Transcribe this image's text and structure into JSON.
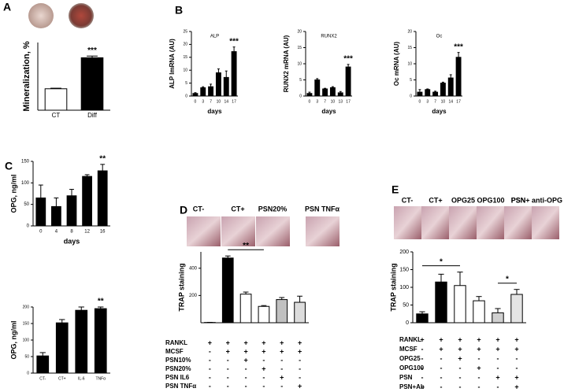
{
  "chart_data": [
    {
      "type": "bar",
      "panel": "A",
      "ylabel": "Mineralization, %",
      "categories": [
        "CT",
        "Diff"
      ],
      "values": [
        38,
        93
      ],
      "errors": [
        1,
        3
      ],
      "colors": [
        "#ffffff",
        "#000000"
      ],
      "ylim": [
        0,
        120
      ],
      "significance": [
        null,
        "***"
      ]
    },
    {
      "type": "bar",
      "panel": "B",
      "title": "ALP",
      "ylabel": "ALP lmRNA (AU)",
      "xlabel": "days",
      "categories": [
        "0",
        "3",
        "7",
        "10",
        "14",
        "17"
      ],
      "values": [
        1,
        3.2,
        3.6,
        9,
        7.2,
        17.2
      ],
      "errors": [
        0.3,
        0.4,
        1,
        1.5,
        2.5,
        1.8
      ],
      "colors": [
        "#000000",
        "#000000",
        "#000000",
        "#000000",
        "#000000",
        "#000000"
      ],
      "ylim": [
        0,
        25
      ],
      "yticks": [
        0,
        5,
        10,
        15,
        20,
        25
      ],
      "significance": [
        null,
        null,
        null,
        null,
        null,
        "***"
      ]
    },
    {
      "type": "bar",
      "title": "RUNX2",
      "ylabel": "RUNX2 mRNA (AU)",
      "xlabel": "days",
      "categories": [
        "0",
        "3",
        "7",
        "10",
        "13",
        "17"
      ],
      "values": [
        0.8,
        5,
        2.2,
        2.6,
        1,
        9
      ],
      "errors": [
        0.4,
        0.4,
        0.2,
        0.3,
        0.4,
        0.8
      ],
      "colors": [
        "#000000",
        "#000000",
        "#000000",
        "#000000",
        "#000000",
        "#000000"
      ],
      "ylim": [
        0,
        20
      ],
      "yticks": [
        0,
        5,
        10,
        15,
        20
      ],
      "significance": [
        null,
        null,
        null,
        null,
        null,
        "***"
      ]
    },
    {
      "type": "bar",
      "title": "Oc",
      "ylabel": "Oc mRNA (AU)",
      "xlabel": "days",
      "categories": [
        "0",
        "3",
        "7",
        "10",
        "14",
        "17"
      ],
      "values": [
        1.2,
        2,
        1.2,
        4,
        5.6,
        12
      ],
      "errors": [
        0.8,
        0.2,
        0.3,
        0.3,
        1,
        1.5
      ],
      "colors": [
        "#000000",
        "#000000",
        "#000000",
        "#000000",
        "#000000",
        "#000000"
      ],
      "ylim": [
        0,
        20
      ],
      "yticks": [
        0,
        5,
        10,
        15,
        20
      ],
      "significance": [
        null,
        null,
        null,
        null,
        null,
        "***"
      ]
    },
    {
      "type": "bar",
      "panel": "C",
      "ylabel": "OPG, ng/ml",
      "xlabel": "days",
      "categories": [
        "0",
        "4",
        "8",
        "12",
        "16"
      ],
      "values": [
        65,
        45,
        70,
        115,
        128
      ],
      "errors": [
        30,
        20,
        15,
        4,
        15
      ],
      "colors": [
        "#000000",
        "#000000",
        "#000000",
        "#000000",
        "#000000"
      ],
      "ylim": [
        0,
        150
      ],
      "yticks": [
        0,
        50,
        100,
        150
      ],
      "significance": [
        null,
        null,
        null,
        null,
        "**"
      ]
    },
    {
      "type": "bar",
      "ylabel": "OPG, ng/ml",
      "categories": [
        "CT-",
        "CT+",
        "IL-6",
        "TNFα"
      ],
      "values": [
        52,
        152,
        190,
        195
      ],
      "errors": [
        10,
        10,
        10,
        5
      ],
      "colors": [
        "#000000",
        "#000000",
        "#000000",
        "#000000"
      ],
      "ylim": [
        0,
        200
      ],
      "yticks": [
        0,
        50,
        100,
        150,
        200
      ],
      "significance": [
        null,
        null,
        null,
        "**"
      ]
    },
    {
      "type": "bar",
      "panel": "D",
      "ylabel": "TRAP staining",
      "image_labels": [
        "CT-",
        "CT+",
        "PSN20%",
        "PSN TNFα"
      ],
      "values": [
        2,
        475,
        210,
        120,
        170,
        150
      ],
      "errors": [
        1,
        15,
        15,
        6,
        15,
        45
      ],
      "colors": [
        "#ffffff",
        "#000000",
        "#ffffff",
        "#ffffff",
        "#c0c0c0",
        "#dcdcdc"
      ],
      "ylim": [
        0,
        520
      ],
      "yticks": [
        200,
        400
      ],
      "significance": [
        null,
        null,
        null,
        "**",
        null,
        null
      ],
      "table": {
        "rows": [
          {
            "label": "RANKL",
            "cells": [
              "+",
              "+",
              "+",
              "+",
              "+",
              "+"
            ]
          },
          {
            "label": "MCSF",
            "cells": [
              "-",
              "+",
              "+",
              "+",
              "+",
              "+"
            ]
          },
          {
            "label": "PSN10%",
            "cells": [
              "-",
              "-",
              "+",
              "-",
              "-",
              "-"
            ]
          },
          {
            "label": "PSN20%",
            "cells": [
              "-",
              "-",
              "-",
              "+",
              "-",
              "-"
            ]
          },
          {
            "label": "PSN IL6",
            "cells": [
              "-",
              "-",
              "-",
              "-",
              "+",
              "-"
            ]
          },
          {
            "label": "PSN TNFα",
            "cells": [
              "-",
              "-",
              "-",
              "-",
              "-",
              "+"
            ]
          }
        ]
      }
    },
    {
      "type": "bar",
      "panel": "E",
      "ylabel": "TRAP staining",
      "image_labels": [
        "CT-",
        "CT+",
        "OPG25",
        "OPG100",
        "PSN",
        "PSN+ anti-OPG"
      ],
      "values": [
        25,
        115,
        105,
        62,
        28,
        80
      ],
      "errors": [
        6,
        22,
        38,
        12,
        12,
        14
      ],
      "colors": [
        "#000000",
        "#000000",
        "#ffffff",
        "#ffffff",
        "#d0d0d0",
        "#e4e4e4"
      ],
      "ylim": [
        0,
        200
      ],
      "yticks": [
        0,
        50,
        100,
        150,
        200
      ],
      "significance": [
        null,
        null,
        "*",
        null,
        null,
        "*"
      ],
      "table": {
        "rows": [
          {
            "label": "RANKL",
            "cells": [
              "+",
              "+",
              "+",
              "+",
              "+",
              "+"
            ]
          },
          {
            "label": "MCSF",
            "cells": [
              "-",
              "+",
              "+",
              "+",
              "+",
              "+"
            ]
          },
          {
            "label": "OPG25",
            "cells": [
              "-",
              "-",
              "+",
              "-",
              "-",
              "-"
            ]
          },
          {
            "label": "OPG100",
            "cells": [
              "-",
              "-",
              "-",
              "+",
              "-",
              "-"
            ]
          },
          {
            "label": "PSN",
            "cells": [
              "-",
              "-",
              "-",
              "-",
              "+",
              "+"
            ]
          },
          {
            "label": "PSN+Ab",
            "cells": [
              "-",
              "-",
              "-",
              "-",
              "-",
              "+"
            ]
          }
        ]
      }
    }
  ]
}
